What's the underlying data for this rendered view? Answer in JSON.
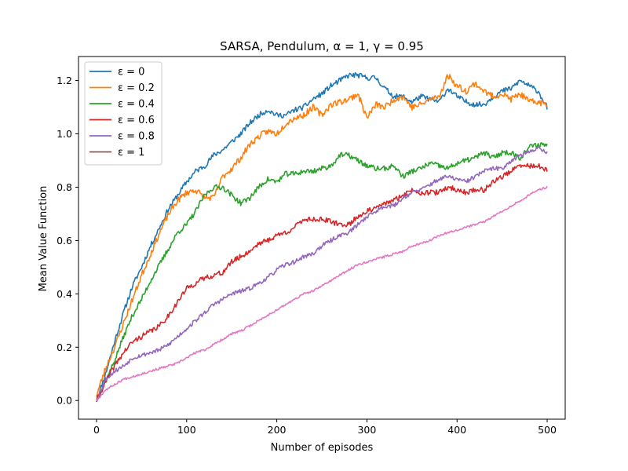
{
  "chart_data": {
    "type": "line",
    "title": "SARSA, Pendulum, α = 1, γ = 0.95",
    "xlabel": "Number of episodes",
    "ylabel": "Mean Value Function",
    "xlim": [
      -20,
      520
    ],
    "ylim": [
      -0.07,
      1.29
    ],
    "xticks": [
      0,
      100,
      200,
      300,
      400,
      500
    ],
    "yticks": [
      0.0,
      0.2,
      0.4,
      0.6,
      0.8,
      1.0,
      1.2
    ],
    "grid": false,
    "legend_position": "top-left",
    "series": [
      {
        "name": "ε = 0",
        "color": "#1f77b4",
        "legend": true,
        "noise": 0.01,
        "seed": 11,
        "x": [
          0,
          10,
          20,
          30,
          40,
          50,
          60,
          70,
          80,
          90,
          100,
          110,
          120,
          130,
          140,
          150,
          160,
          170,
          180,
          190,
          200,
          210,
          220,
          230,
          240,
          250,
          260,
          270,
          280,
          290,
          300,
          310,
          320,
          330,
          340,
          350,
          360,
          370,
          380,
          390,
          400,
          410,
          420,
          430,
          440,
          450,
          460,
          470,
          480,
          490,
          500
        ],
        "y": [
          0.0,
          0.1,
          0.22,
          0.33,
          0.43,
          0.5,
          0.58,
          0.65,
          0.72,
          0.77,
          0.82,
          0.86,
          0.88,
          0.92,
          0.94,
          0.97,
          1.0,
          1.04,
          1.07,
          1.09,
          1.07,
          1.07,
          1.09,
          1.1,
          1.13,
          1.15,
          1.18,
          1.2,
          1.22,
          1.22,
          1.21,
          1.21,
          1.17,
          1.14,
          1.14,
          1.12,
          1.14,
          1.13,
          1.12,
          1.17,
          1.14,
          1.12,
          1.11,
          1.11,
          1.14,
          1.16,
          1.17,
          1.2,
          1.18,
          1.16,
          1.1
        ]
      },
      {
        "name": "ε = 0.2",
        "color": "#ff7f0e",
        "legend": true,
        "noise": 0.012,
        "seed": 23,
        "x": [
          0,
          10,
          20,
          30,
          40,
          50,
          60,
          70,
          80,
          90,
          100,
          110,
          120,
          130,
          140,
          150,
          160,
          170,
          180,
          190,
          200,
          210,
          220,
          230,
          240,
          250,
          260,
          270,
          280,
          290,
          300,
          310,
          320,
          330,
          340,
          350,
          360,
          370,
          380,
          390,
          400,
          410,
          420,
          430,
          440,
          450,
          460,
          470,
          480,
          490,
          500
        ],
        "y": [
          0.02,
          0.12,
          0.2,
          0.29,
          0.38,
          0.47,
          0.55,
          0.63,
          0.7,
          0.75,
          0.78,
          0.79,
          0.76,
          0.76,
          0.84,
          0.87,
          0.91,
          0.96,
          0.99,
          1.01,
          1.0,
          1.04,
          1.06,
          1.07,
          1.1,
          1.07,
          1.11,
          1.12,
          1.13,
          1.15,
          1.06,
          1.11,
          1.1,
          1.13,
          1.14,
          1.1,
          1.11,
          1.13,
          1.14,
          1.22,
          1.18,
          1.16,
          1.19,
          1.16,
          1.14,
          1.15,
          1.13,
          1.15,
          1.12,
          1.12,
          1.11
        ]
      },
      {
        "name": "ε = 0.4",
        "color": "#2ca02c",
        "legend": true,
        "noise": 0.01,
        "seed": 37,
        "x": [
          0,
          10,
          20,
          30,
          40,
          50,
          60,
          70,
          80,
          90,
          100,
          110,
          120,
          130,
          140,
          150,
          160,
          170,
          180,
          190,
          200,
          210,
          220,
          230,
          240,
          250,
          260,
          270,
          280,
          290,
          300,
          310,
          320,
          330,
          340,
          350,
          360,
          370,
          380,
          390,
          400,
          410,
          420,
          430,
          440,
          450,
          460,
          470,
          480,
          490,
          500
        ],
        "y": [
          0.0,
          0.07,
          0.15,
          0.24,
          0.32,
          0.38,
          0.45,
          0.51,
          0.57,
          0.63,
          0.66,
          0.71,
          0.77,
          0.8,
          0.8,
          0.77,
          0.74,
          0.76,
          0.8,
          0.83,
          0.82,
          0.85,
          0.85,
          0.86,
          0.86,
          0.87,
          0.88,
          0.92,
          0.92,
          0.9,
          0.88,
          0.87,
          0.87,
          0.88,
          0.84,
          0.86,
          0.87,
          0.89,
          0.88,
          0.87,
          0.89,
          0.9,
          0.91,
          0.93,
          0.91,
          0.93,
          0.93,
          0.91,
          0.95,
          0.96,
          0.96
        ]
      },
      {
        "name": "ε = 0.6",
        "color": "#d62728",
        "legend": true,
        "noise": 0.01,
        "seed": 41,
        "x": [
          0,
          10,
          20,
          30,
          40,
          50,
          60,
          70,
          80,
          90,
          100,
          110,
          120,
          130,
          140,
          150,
          160,
          170,
          180,
          190,
          200,
          210,
          220,
          230,
          240,
          250,
          260,
          270,
          280,
          290,
          300,
          310,
          320,
          330,
          340,
          350,
          360,
          370,
          380,
          390,
          400,
          410,
          420,
          430,
          440,
          450,
          460,
          470,
          480,
          490,
          500
        ],
        "y": [
          0.0,
          0.07,
          0.13,
          0.18,
          0.22,
          0.24,
          0.26,
          0.28,
          0.32,
          0.37,
          0.42,
          0.44,
          0.46,
          0.47,
          0.48,
          0.52,
          0.54,
          0.56,
          0.59,
          0.6,
          0.62,
          0.63,
          0.65,
          0.68,
          0.68,
          0.68,
          0.67,
          0.66,
          0.66,
          0.69,
          0.71,
          0.72,
          0.74,
          0.75,
          0.77,
          0.79,
          0.78,
          0.78,
          0.78,
          0.8,
          0.79,
          0.78,
          0.79,
          0.79,
          0.82,
          0.84,
          0.86,
          0.88,
          0.88,
          0.88,
          0.86
        ]
      },
      {
        "name": "ε = 0.8",
        "color": "#9467bd",
        "legend": true,
        "noise": 0.008,
        "seed": 53,
        "x": [
          0,
          10,
          20,
          30,
          40,
          50,
          60,
          70,
          80,
          90,
          100,
          110,
          120,
          130,
          140,
          150,
          160,
          170,
          180,
          190,
          200,
          210,
          220,
          230,
          240,
          250,
          260,
          270,
          280,
          290,
          300,
          310,
          320,
          330,
          340,
          350,
          360,
          370,
          380,
          390,
          400,
          410,
          420,
          430,
          440,
          450,
          460,
          470,
          480,
          490,
          500
        ],
        "y": [
          0.0,
          0.08,
          0.11,
          0.13,
          0.16,
          0.17,
          0.18,
          0.19,
          0.21,
          0.24,
          0.27,
          0.3,
          0.33,
          0.36,
          0.38,
          0.4,
          0.41,
          0.42,
          0.44,
          0.46,
          0.49,
          0.51,
          0.52,
          0.54,
          0.55,
          0.58,
          0.6,
          0.62,
          0.63,
          0.66,
          0.69,
          0.71,
          0.73,
          0.73,
          0.76,
          0.78,
          0.79,
          0.81,
          0.83,
          0.84,
          0.83,
          0.82,
          0.84,
          0.86,
          0.87,
          0.87,
          0.9,
          0.92,
          0.93,
          0.95,
          0.93
        ]
      },
      {
        "name": "ε = 1",
        "color": "#8c564b",
        "legend": true,
        "noise": 0.0,
        "seed": 61,
        "hidden": true,
        "x": [
          0,
          500
        ],
        "y": [
          0.0,
          0.8
        ]
      },
      {
        "name": "",
        "color": "#e377c2",
        "legend": false,
        "noise": 0.004,
        "seed": 67,
        "x": [
          0,
          10,
          20,
          30,
          40,
          50,
          60,
          70,
          80,
          90,
          100,
          110,
          120,
          130,
          140,
          150,
          160,
          170,
          180,
          190,
          200,
          210,
          220,
          230,
          240,
          250,
          260,
          270,
          280,
          290,
          300,
          310,
          320,
          330,
          340,
          350,
          360,
          370,
          380,
          390,
          400,
          410,
          420,
          430,
          440,
          450,
          460,
          470,
          480,
          490,
          500
        ],
        "y": [
          0.0,
          0.04,
          0.06,
          0.08,
          0.09,
          0.1,
          0.11,
          0.12,
          0.13,
          0.14,
          0.16,
          0.18,
          0.19,
          0.21,
          0.23,
          0.25,
          0.26,
          0.28,
          0.3,
          0.32,
          0.34,
          0.36,
          0.38,
          0.4,
          0.41,
          0.43,
          0.45,
          0.47,
          0.49,
          0.51,
          0.52,
          0.53,
          0.54,
          0.55,
          0.56,
          0.58,
          0.59,
          0.6,
          0.62,
          0.63,
          0.64,
          0.65,
          0.66,
          0.67,
          0.69,
          0.71,
          0.73,
          0.75,
          0.77,
          0.79,
          0.8
        ]
      }
    ]
  }
}
